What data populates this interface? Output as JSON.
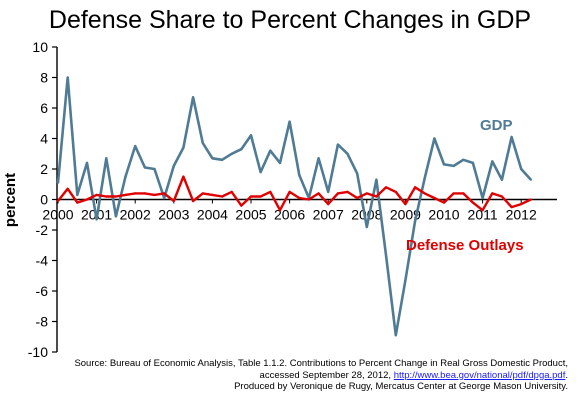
{
  "chart_data": {
    "type": "line",
    "title": "Defense Share to Percent Changes in GDP",
    "xlabel": "",
    "ylabel": "percent",
    "ylim": [
      -10,
      10
    ],
    "yticks": [
      -10,
      -8,
      -6,
      -4,
      -2,
      0,
      2,
      4,
      6,
      8,
      10
    ],
    "x_tick_labels": [
      "2000",
      "2001",
      "2002",
      "2003",
      "2004",
      "2005",
      "2006",
      "2007",
      "2008",
      "2009",
      "2010",
      "2011",
      "2012"
    ],
    "x_start_year": 2000,
    "grid": false,
    "series": [
      {
        "name": "GDP",
        "color": "#4f7b95",
        "values": [
          1.1,
          8.0,
          0.3,
          2.4,
          -1.3,
          2.7,
          -1.1,
          1.5,
          3.5,
          2.1,
          2.0,
          0.1,
          2.2,
          3.4,
          6.7,
          3.7,
          2.7,
          2.6,
          3.0,
          3.3,
          4.2,
          1.8,
          3.2,
          2.4,
          5.1,
          1.6,
          0.1,
          2.7,
          0.5,
          3.6,
          3.0,
          1.7,
          -1.8,
          1.3,
          -3.7,
          -8.9,
          -5.3,
          -1.4,
          1.4,
          4.0,
          2.3,
          2.2,
          2.6,
          2.4,
          0.1,
          2.5,
          1.3,
          4.1,
          2.0,
          1.3
        ]
      },
      {
        "name": "Defense Outlays",
        "color": "#e00000",
        "values": [
          -0.1,
          0.7,
          -0.2,
          0.0,
          0.3,
          0.2,
          0.2,
          0.3,
          0.4,
          0.4,
          0.3,
          0.4,
          -0.1,
          1.5,
          -0.1,
          0.4,
          0.3,
          0.2,
          0.5,
          -0.4,
          0.2,
          0.2,
          0.5,
          -0.7,
          0.5,
          0.1,
          0.0,
          0.4,
          -0.3,
          0.4,
          0.5,
          0.1,
          0.4,
          0.2,
          0.8,
          0.5,
          -0.3,
          0.8,
          0.4,
          0.1,
          -0.2,
          0.4,
          0.4,
          -0.2,
          -0.7,
          0.4,
          0.2,
          -0.5,
          -0.3,
          0.0
        ]
      }
    ],
    "annotations": [
      {
        "text": "GDP",
        "color": "#4f7b95"
      },
      {
        "text": "Defense Outlays",
        "color": "#e00000"
      }
    ]
  },
  "source": {
    "line1": "Source: Bureau of Economic Analysis, Table  1.1.2. Contributions to Percent Change in Real Gross Domestic Product,",
    "line2_prefix": "accessed September 28, 2012, ",
    "line2_link": "http://www.bea.gov/national/pdf/dpga.pdf",
    "line2_suffix": ".",
    "line3": "Produced by Veronique de Rugy, Mercatus Center at George Mason University."
  }
}
